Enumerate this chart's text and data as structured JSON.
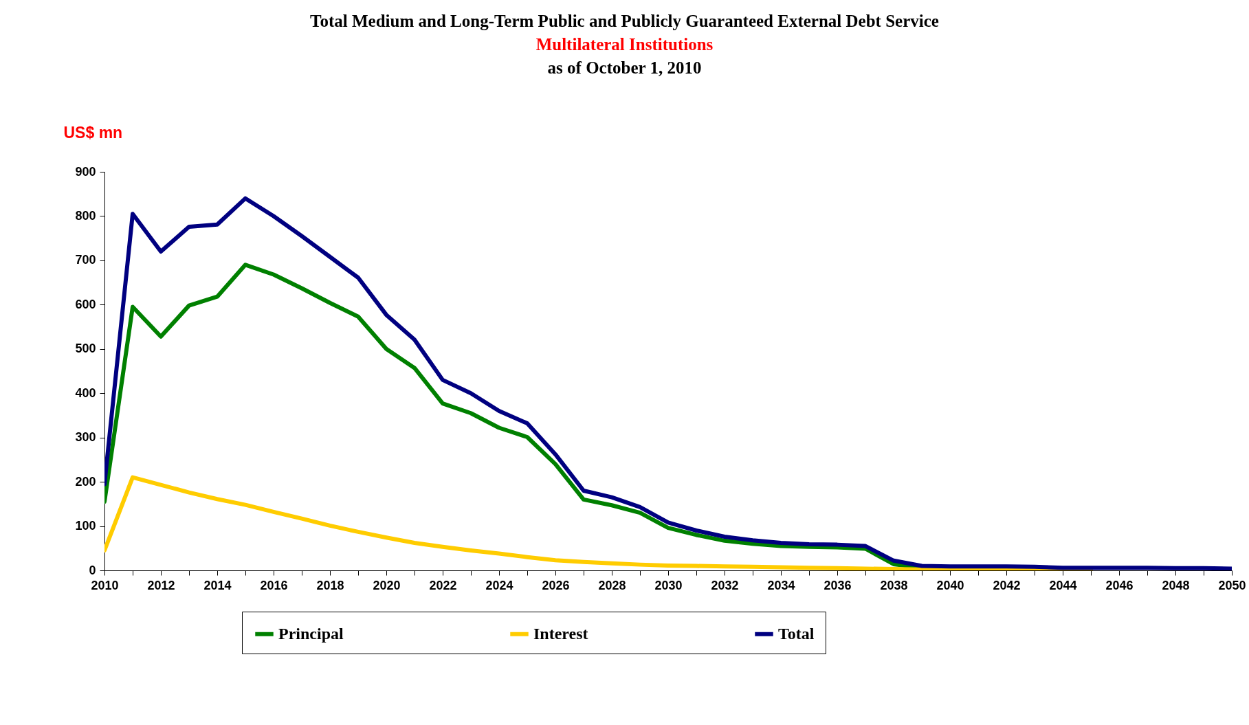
{
  "chart_data": {
    "type": "line",
    "title": "Total Medium and Long-Term Public and Publicly Guaranteed External Debt Service",
    "subtitle": "Multilateral Institutions",
    "annotations": [
      "as of October 1, 2010"
    ],
    "ylabel": "US$ mn",
    "x": [
      2010,
      2011,
      2012,
      2013,
      2014,
      2015,
      2016,
      2017,
      2018,
      2019,
      2020,
      2021,
      2022,
      2023,
      2024,
      2025,
      2026,
      2027,
      2028,
      2029,
      2030,
      2031,
      2032,
      2033,
      2034,
      2035,
      2036,
      2037,
      2038,
      2039,
      2040,
      2041,
      2042,
      2043,
      2044,
      2045,
      2046,
      2047,
      2048,
      2049,
      2050
    ],
    "series": [
      {
        "name": "Principal",
        "color": "#008000",
        "values": [
          155,
          595,
          528,
          598,
          618,
          690,
          668,
          637,
          604,
          573,
          500,
          457,
          377,
          355,
          322,
          301,
          240,
          160,
          147,
          130,
          96,
          80,
          67,
          60,
          55,
          53,
          52,
          49,
          14,
          6,
          null,
          null,
          null,
          null,
          null,
          null,
          null,
          null,
          null,
          null,
          null
        ]
      },
      {
        "name": "Interest",
        "color": "#ffcc00",
        "values": [
          45,
          210,
          193,
          176,
          161,
          148,
          132,
          117,
          101,
          87,
          74,
          62,
          53,
          45,
          38,
          30,
          23,
          19,
          16,
          13,
          11,
          10,
          9,
          8,
          7,
          6,
          5,
          4,
          3,
          2,
          1,
          1,
          1,
          1,
          1,
          1,
          null,
          null,
          null,
          null,
          null
        ]
      },
      {
        "name": "Total",
        "color": "#000080",
        "values": [
          195,
          805,
          720,
          776,
          781,
          840,
          800,
          755,
          708,
          661,
          577,
          521,
          430,
          400,
          360,
          332,
          262,
          180,
          165,
          143,
          108,
          90,
          76,
          68,
          62,
          59,
          58,
          55,
          22,
          10,
          9,
          9,
          9,
          8,
          6,
          6,
          6,
          6,
          5,
          5,
          4
        ]
      }
    ],
    "xlim": [
      2010,
      2050
    ],
    "xticks": [
      2010,
      {
        "value": 2011,
        "label": null
      },
      2012,
      {
        "value": 2013,
        "label": null
      },
      2014,
      {
        "value": 2015,
        "label": null
      },
      2016,
      {
        "value": 2017,
        "label": null
      },
      2018,
      {
        "value": 2019,
        "label": null
      },
      2020,
      {
        "value": 2021,
        "label": null
      },
      2022,
      {
        "value": 2023,
        "label": null
      },
      2024,
      {
        "value": 2025,
        "label": null
      },
      2026,
      {
        "value": 2027,
        "label": null
      },
      2028,
      {
        "value": 2029,
        "label": null
      },
      2030,
      {
        "value": 2031,
        "label": null
      },
      2032,
      {
        "value": 2033,
        "label": null
      },
      2034,
      {
        "value": 2035,
        "label": null
      },
      2036,
      {
        "value": 2037,
        "label": null
      },
      2038,
      {
        "value": 2039,
        "label": null
      },
      2040,
      {
        "value": 2041,
        "label": null
      },
      2042,
      {
        "value": 2043,
        "label": null
      },
      2044,
      {
        "value": 2045,
        "label": null
      },
      2046,
      {
        "value": 2047,
        "label": null
      },
      2048,
      {
        "value": 2049,
        "label": null
      },
      2050
    ],
    "ylim": [
      0,
      900
    ],
    "yticks": [
      0,
      100,
      200,
      300,
      400,
      500,
      600,
      700,
      800,
      900
    ],
    "grid": false,
    "legend": "bottom",
    "marker": "none",
    "line_style": "solid"
  }
}
